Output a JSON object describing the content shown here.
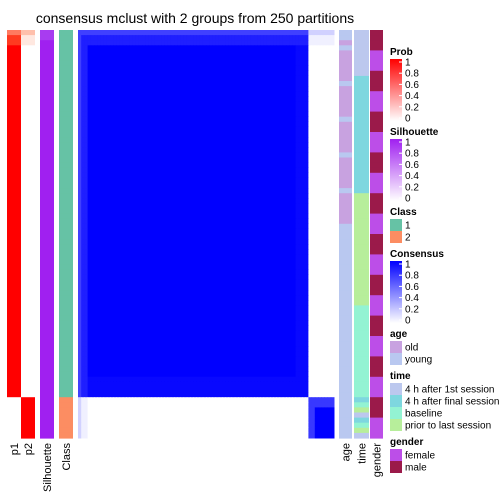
{
  "chart_data": {
    "type": "heatmap",
    "title": "consensus mclust with 2 groups from 250 partitions",
    "n_rows": 80,
    "group_sizes": [
      72,
      8
    ],
    "left_annotations": [
      {
        "name": "p1",
        "label": "p1"
      },
      {
        "name": "p2",
        "label": "p2"
      },
      {
        "name": "Silhouette",
        "label": "Silhouette"
      },
      {
        "name": "Class",
        "label": "Class"
      }
    ],
    "right_annotations": [
      {
        "name": "age",
        "label": "age"
      },
      {
        "name": "time",
        "label": "time"
      },
      {
        "name": "gender",
        "label": "gender"
      }
    ],
    "legends": [
      {
        "title": "Prob",
        "kind": "continuous",
        "ticks": [
          "1",
          "0.8",
          "0.6",
          "0.4",
          "0.2",
          "0"
        ],
        "colors": [
          "#ff0000",
          "#ffffff"
        ]
      },
      {
        "title": "Silhouette",
        "kind": "continuous",
        "ticks": [
          "1",
          "0.8",
          "0.6",
          "0.4",
          "0.2",
          "0"
        ],
        "colors": [
          "#a020f0",
          "#ffffff"
        ]
      },
      {
        "title": "Class",
        "kind": "discrete",
        "items": [
          {
            "label": "1",
            "color": "#66c2a5"
          },
          {
            "label": "2",
            "color": "#fc8d62"
          }
        ]
      },
      {
        "title": "Consensus",
        "kind": "continuous",
        "ticks": [
          "1",
          "0.8",
          "0.6",
          "0.4",
          "0.2",
          "0"
        ],
        "colors": [
          "#0000ff",
          "#ffffff"
        ]
      },
      {
        "title": "age",
        "kind": "discrete",
        "items": [
          {
            "label": "old",
            "color": "#c8a2e0"
          },
          {
            "label": "young",
            "color": "#b9c8f0"
          }
        ]
      },
      {
        "title": "time",
        "kind": "discrete",
        "items": [
          {
            "label": "4 h after 1st session",
            "color": "#bcc8ee"
          },
          {
            "label": "4 h after final session",
            "color": "#7ed7df"
          },
          {
            "label": "baseline",
            "color": "#93f3d3"
          },
          {
            "label": "prior to last session",
            "color": "#b7ee9b"
          }
        ]
      },
      {
        "title": "gender",
        "kind": "discrete",
        "items": [
          {
            "label": "female",
            "color": "#bc4ee8"
          },
          {
            "label": "male",
            "color": "#9b1a4a"
          }
        ]
      }
    ],
    "colors": {
      "prob_high": "#ff0000",
      "silhouette": "#a020f0",
      "class1": "#66c2a5",
      "class2": "#fc8d62",
      "consensus_high": "#0000ff"
    }
  }
}
